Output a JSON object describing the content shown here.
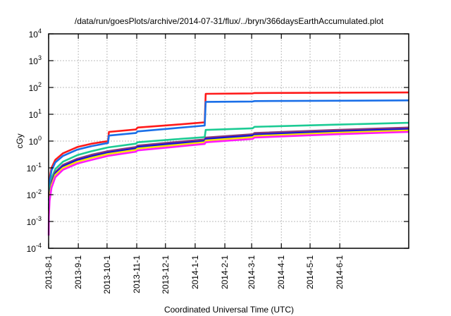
{
  "chart_data": {
    "type": "line",
    "title": "/data/run/goesPlots/archive/2014-07-31/flux/../bryn/366daysEarthAccumulated.plot",
    "xlabel": "Coordinated Universal Time (UTC)",
    "ylabel": "cGy",
    "x_unit": "days since 2013-8-1",
    "xlim": [
      0,
      376
    ],
    "ylim": [
      0.0001,
      10000
    ],
    "yscale": "log",
    "grid": true,
    "x_ticks": [
      {
        "label": "2013-8-1",
        "day": 0
      },
      {
        "label": "2013-9-1",
        "day": 31
      },
      {
        "label": "2013-10-1",
        "day": 61
      },
      {
        "label": "2013-11-1",
        "day": 92
      },
      {
        "label": "2013-12-1",
        "day": 122
      },
      {
        "label": "2014-1-1",
        "day": 153
      },
      {
        "label": "2014-2-1",
        "day": 184
      },
      {
        "label": "2014-3-1",
        "day": 212
      },
      {
        "label": "2014-4-1",
        "day": 243
      },
      {
        "label": "2014-5-1",
        "day": 273
      },
      {
        "label": "2014-6-1",
        "day": 304
      }
    ],
    "y_ticks": [
      {
        "base": "10",
        "exp": "-4",
        "value": 0.0001
      },
      {
        "base": "10",
        "exp": "-3",
        "value": 0.001
      },
      {
        "base": "10",
        "exp": "-2",
        "value": 0.01
      },
      {
        "base": "10",
        "exp": "-1",
        "value": 0.1
      },
      {
        "base": "10",
        "exp": "0",
        "value": 1
      },
      {
        "base": "10",
        "exp": "1",
        "value": 10
      },
      {
        "base": "10",
        "exp": "2",
        "value": 100
      },
      {
        "base": "10",
        "exp": "3",
        "value": 1000
      },
      {
        "base": "10",
        "exp": "4",
        "value": 10000
      }
    ],
    "series": [
      {
        "name": "series-red",
        "color": "#ff1a1a",
        "points": [
          [
            0.2,
            0.008
          ],
          [
            1,
            0.04
          ],
          [
            3,
            0.1
          ],
          [
            7,
            0.2
          ],
          [
            15,
            0.35
          ],
          [
            30,
            0.6
          ],
          [
            45,
            0.8
          ],
          [
            62,
            1.0
          ],
          [
            63,
            2.2
          ],
          [
            91,
            2.7
          ],
          [
            93,
            3.2
          ],
          [
            130,
            4.0
          ],
          [
            163,
            5.0
          ],
          [
            164,
            58
          ],
          [
            213,
            60
          ],
          [
            215,
            62
          ],
          [
            300,
            64
          ],
          [
            376,
            65
          ]
        ]
      },
      {
        "name": "series-blue",
        "color": "#1a6fe8",
        "points": [
          [
            0.2,
            0.006
          ],
          [
            1,
            0.03
          ],
          [
            3,
            0.08
          ],
          [
            7,
            0.16
          ],
          [
            15,
            0.28
          ],
          [
            30,
            0.48
          ],
          [
            45,
            0.65
          ],
          [
            62,
            0.85
          ],
          [
            63,
            1.6
          ],
          [
            91,
            2.0
          ],
          [
            93,
            2.3
          ],
          [
            130,
            3.0
          ],
          [
            163,
            3.8
          ],
          [
            164,
            29
          ],
          [
            213,
            30
          ],
          [
            215,
            31
          ],
          [
            300,
            32
          ],
          [
            376,
            33
          ]
        ]
      },
      {
        "name": "series-teal",
        "color": "#1ccb94",
        "points": [
          [
            0.2,
            0.004
          ],
          [
            1,
            0.015
          ],
          [
            3,
            0.04
          ],
          [
            7,
            0.09
          ],
          [
            15,
            0.17
          ],
          [
            30,
            0.3
          ],
          [
            45,
            0.42
          ],
          [
            62,
            0.58
          ],
          [
            91,
            0.8
          ],
          [
            93,
            0.9
          ],
          [
            130,
            1.15
          ],
          [
            163,
            1.4
          ],
          [
            164,
            2.6
          ],
          [
            213,
            3.0
          ],
          [
            215,
            3.4
          ],
          [
            300,
            4.1
          ],
          [
            376,
            4.8
          ]
        ]
      },
      {
        "name": "series-purple",
        "color": "#8a3a7a",
        "points": [
          [
            0.2,
            0.003
          ],
          [
            1,
            0.01
          ],
          [
            3,
            0.03
          ],
          [
            7,
            0.07
          ],
          [
            15,
            0.13
          ],
          [
            30,
            0.22
          ],
          [
            45,
            0.31
          ],
          [
            62,
            0.42
          ],
          [
            91,
            0.6
          ],
          [
            93,
            0.68
          ],
          [
            130,
            0.9
          ],
          [
            163,
            1.15
          ],
          [
            164,
            1.35
          ],
          [
            213,
            1.8
          ],
          [
            215,
            2.0
          ],
          [
            300,
            2.6
          ],
          [
            376,
            3.2
          ]
        ]
      },
      {
        "name": "series-darkblue",
        "color": "#1010e0",
        "points": [
          [
            0.2,
            0.0025
          ],
          [
            1,
            0.009
          ],
          [
            3,
            0.027
          ],
          [
            7,
            0.062
          ],
          [
            15,
            0.115
          ],
          [
            30,
            0.195
          ],
          [
            45,
            0.27
          ],
          [
            62,
            0.37
          ],
          [
            91,
            0.53
          ],
          [
            93,
            0.6
          ],
          [
            130,
            0.8
          ],
          [
            163,
            1.0
          ],
          [
            164,
            1.2
          ],
          [
            213,
            1.6
          ],
          [
            215,
            1.75
          ],
          [
            300,
            2.3
          ],
          [
            376,
            2.8
          ]
        ]
      },
      {
        "name": "series-yellow",
        "color": "#f5e600",
        "points": [
          [
            0.2,
            0.002
          ],
          [
            1,
            0.008
          ],
          [
            3,
            0.023
          ],
          [
            7,
            0.055
          ],
          [
            15,
            0.1
          ],
          [
            30,
            0.17
          ],
          [
            45,
            0.24
          ],
          [
            62,
            0.33
          ],
          [
            91,
            0.47
          ],
          [
            93,
            0.53
          ],
          [
            130,
            0.7
          ],
          [
            163,
            0.9
          ],
          [
            164,
            1.05
          ],
          [
            213,
            1.4
          ],
          [
            215,
            1.55
          ],
          [
            300,
            2.05
          ],
          [
            376,
            2.5
          ]
        ]
      },
      {
        "name": "series-magenta",
        "color": "#ff1aff",
        "points": [
          [
            0.05,
            0.0003
          ],
          [
            0.2,
            0.0015
          ],
          [
            1,
            0.006
          ],
          [
            3,
            0.018
          ],
          [
            7,
            0.045
          ],
          [
            15,
            0.085
          ],
          [
            30,
            0.145
          ],
          [
            45,
            0.2
          ],
          [
            62,
            0.28
          ],
          [
            91,
            0.4
          ],
          [
            93,
            0.45
          ],
          [
            130,
            0.6
          ],
          [
            163,
            0.78
          ],
          [
            164,
            0.9
          ],
          [
            213,
            1.2
          ],
          [
            215,
            1.35
          ],
          [
            300,
            1.8
          ],
          [
            376,
            2.2
          ]
        ]
      }
    ]
  }
}
